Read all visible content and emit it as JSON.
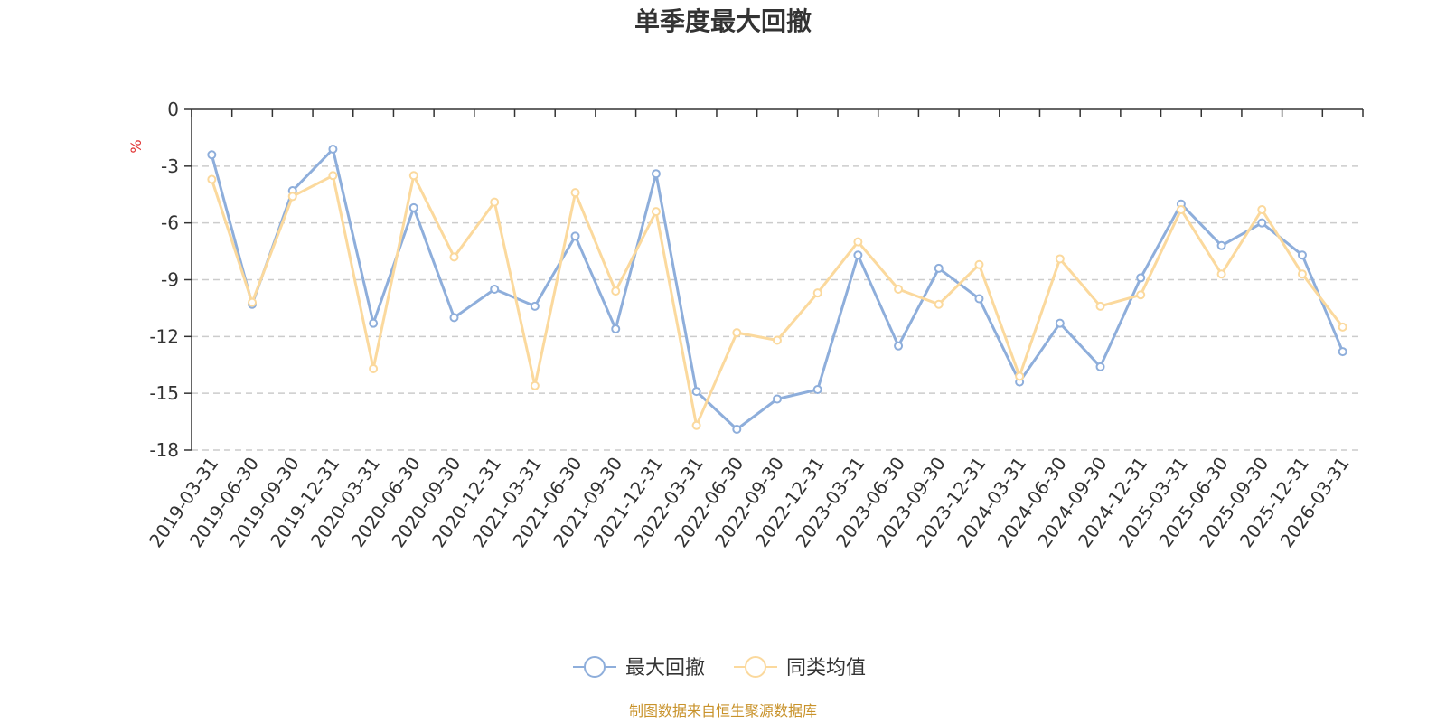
{
  "chart_data": {
    "type": "line",
    "title": "单季度最大回撤",
    "y_unit": "%",
    "ylim": [
      -18,
      0
    ],
    "y_ticks": [
      0,
      -3,
      -6,
      -9,
      -12,
      -15,
      -18
    ],
    "y_tick_labels": [
      "0",
      "-3",
      "-6",
      "-9",
      "-12",
      "-15",
      "-18"
    ],
    "grid": "horizontal dashed",
    "legend_position": "bottom-center",
    "categories": [
      "2019-03-31",
      "2019-06-30",
      "2019-09-30",
      "2019-12-31",
      "2020-03-31",
      "2020-06-30",
      "2020-09-30",
      "2020-12-31",
      "2021-03-31",
      "2021-06-30",
      "2021-09-30",
      "2021-12-31",
      "2022-03-31",
      "2022-06-30",
      "2022-09-30",
      "2022-12-31",
      "2023-03-31",
      "2023-06-30",
      "2023-09-30",
      "2023-12-31",
      "2024-03-31",
      "2024-06-30",
      "2024-09-30",
      "2024-12-31",
      "2025-03-31",
      "2025-06-30",
      "2025-09-30",
      "2025-12-31",
      "2026-03-31"
    ],
    "series": [
      {
        "name": "最大回撤",
        "color": "#8eaedb",
        "values": [
          -2.4,
          -10.3,
          -4.3,
          -2.1,
          -11.3,
          -5.2,
          -11.0,
          -9.5,
          -10.4,
          -6.7,
          -11.6,
          -3.4,
          -14.9,
          -16.9,
          -15.3,
          -14.8,
          -7.7,
          -12.5,
          -8.4,
          -10.0,
          -14.4,
          -11.3,
          -13.6,
          -8.9,
          -5.0,
          -7.2,
          -6.0,
          -7.7,
          -12.8
        ]
      },
      {
        "name": "同类均值",
        "color": "#fbd99d",
        "values": [
          -3.7,
          -10.2,
          -4.6,
          -3.5,
          -13.7,
          -3.5,
          -7.8,
          -4.9,
          -14.6,
          -4.4,
          -9.6,
          -5.4,
          -16.7,
          -11.8,
          -12.2,
          -9.7,
          -7.0,
          -9.5,
          -10.3,
          -8.2,
          -14.1,
          -7.9,
          -10.4,
          -9.8,
          -5.3,
          -8.7,
          -5.3,
          -8.7,
          -11.5
        ]
      }
    ]
  },
  "footer": {
    "source_text": "制图数据来自恒生聚源数据库",
    "source_color": "#c8922a"
  },
  "colors": {
    "axis": "#333333",
    "grid": "#cccccc",
    "unit": "#e03030"
  }
}
